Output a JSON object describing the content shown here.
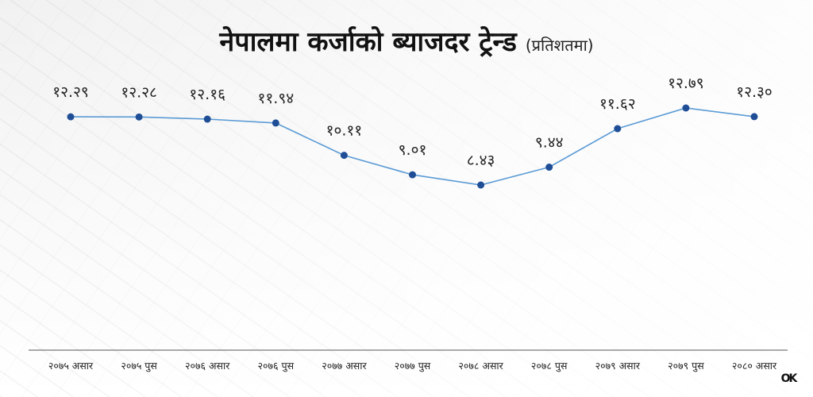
{
  "title": "नेपालमा कर्जाको ब्याजदर ट्रेन्ड",
  "subtitle": "(प्रतिशतमा)",
  "logo_text": "OK",
  "colors": {
    "line": "#5b9bd5",
    "marker": "#1f4e96",
    "axis": "#555555",
    "label": "#222222"
  },
  "chart_data": {
    "type": "line",
    "categories": [
      "२०७५ असार",
      "२०७५ पुस",
      "२०७६ असार",
      "२०७६ पुस",
      "२०७७ असार",
      "२०७७ पुस",
      "२०७८ असार",
      "२०७८ पुस",
      "२०७९ असार",
      "२०७९ पुस",
      "२०८० असार"
    ],
    "values": [
      12.29,
      12.28,
      12.16,
      11.94,
      10.11,
      9.01,
      8.43,
      9.44,
      11.62,
      12.79,
      12.3
    ],
    "value_labels": [
      "१२.२९",
      "१२.२८",
      "१२.१६",
      "११.९४",
      "१०.११",
      "९.०१",
      "८.४३",
      "९.४४",
      "११.६२",
      "१२.७९",
      "१२.३०"
    ],
    "title": "नेपालमा कर्जाको ब्याजदर ट्रेन्ड",
    "subtitle": "(प्रतिशतमा)",
    "grid": false,
    "legend": "none"
  }
}
